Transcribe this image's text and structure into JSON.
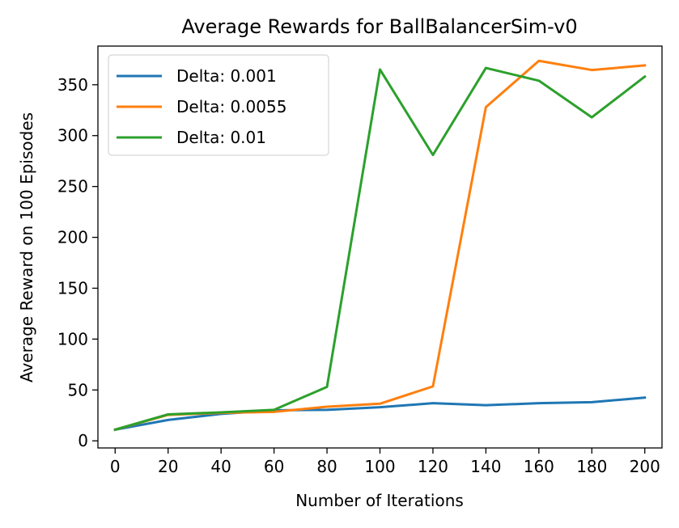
{
  "chart_data": {
    "type": "line",
    "title": "Average Rewards for BallBalancerSim-v0",
    "xlabel": "Number of Iterations",
    "ylabel": "Average Reward on 100 Episodes",
    "x": [
      0,
      20,
      40,
      60,
      80,
      100,
      120,
      140,
      160,
      180,
      200
    ],
    "xlim": [
      -6.5,
      206.5
    ],
    "ylim": [
      -7,
      388
    ],
    "xticks": [
      0,
      20,
      40,
      60,
      80,
      100,
      120,
      140,
      160,
      180,
      200
    ],
    "yticks": [
      0,
      50,
      100,
      150,
      200,
      250,
      300,
      350
    ],
    "grid": false,
    "legend_position": "top-left",
    "series": [
      {
        "name": "Delta: 0.001",
        "color": "#1f77b4",
        "values": [
          11,
          20.5,
          26.5,
          30,
          30.5,
          33,
          37,
          35,
          37,
          38,
          42.5
        ]
      },
      {
        "name": "Delta: 0.0055",
        "color": "#ff7f0e",
        "values": [
          11,
          25.5,
          27.5,
          28.5,
          33.5,
          36.5,
          53.5,
          328,
          373.5,
          364.5,
          369
        ]
      },
      {
        "name": "Delta: 0.01",
        "color": "#2ca02c",
        "values": [
          11,
          26,
          28,
          30.5,
          53,
          365,
          281,
          366.5,
          354,
          318,
          358
        ]
      }
    ]
  }
}
